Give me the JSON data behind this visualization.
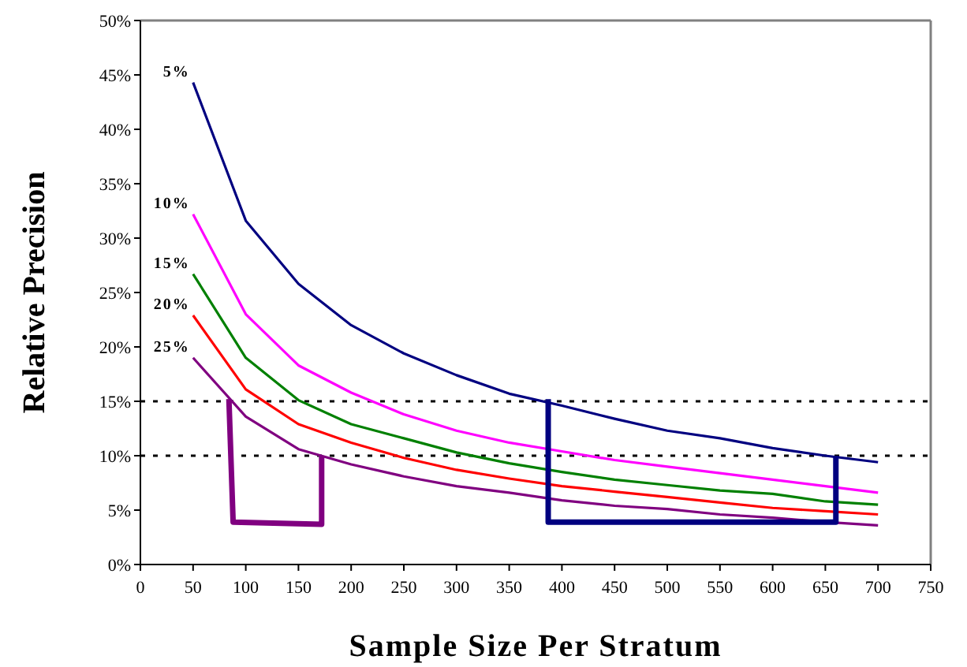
{
  "chart_data": {
    "type": "line",
    "xlabel": "Sample Size Per Stratum",
    "ylabel": "Relative Precision",
    "x": [
      50,
      100,
      150,
      200,
      250,
      300,
      350,
      400,
      450,
      500,
      550,
      600,
      650,
      700
    ],
    "series": [
      {
        "name": "5%",
        "color": "#000080",
        "values": [
          44.3,
          31.6,
          25.8,
          22.0,
          19.4,
          17.4,
          15.7,
          14.6,
          13.4,
          12.3,
          11.6,
          10.7,
          10.0,
          9.4
        ]
      },
      {
        "name": "10%",
        "color": "#ff00ff",
        "values": [
          32.2,
          23.0,
          18.3,
          15.8,
          13.8,
          12.3,
          11.2,
          10.4,
          9.6,
          9.0,
          8.4,
          7.8,
          7.2,
          6.6
        ]
      },
      {
        "name": "15%",
        "color": "#008000",
        "values": [
          26.7,
          19.0,
          15.1,
          12.9,
          11.6,
          10.3,
          9.3,
          8.5,
          7.8,
          7.3,
          6.8,
          6.5,
          5.8,
          5.5
        ]
      },
      {
        "name": "20%",
        "color": "#ff0000",
        "values": [
          22.9,
          16.1,
          12.9,
          11.2,
          9.8,
          8.7,
          7.9,
          7.2,
          6.7,
          6.2,
          5.7,
          5.2,
          4.9,
          4.6
        ]
      },
      {
        "name": "25%",
        "color": "#800080",
        "values": [
          19.0,
          13.6,
          10.6,
          9.2,
          8.1,
          7.2,
          6.6,
          5.9,
          5.4,
          5.1,
          4.6,
          4.3,
          3.9,
          3.6
        ]
      }
    ],
    "xlim": [
      0,
      750
    ],
    "xticks": [
      0,
      50,
      100,
      150,
      200,
      250,
      300,
      350,
      400,
      450,
      500,
      550,
      600,
      650,
      700,
      750
    ],
    "ylim": [
      0,
      50
    ],
    "yticks": [
      {
        "value": 0,
        "label": "0%"
      },
      {
        "value": 5,
        "label": "5%"
      },
      {
        "value": 10,
        "label": "10%"
      },
      {
        "value": 15,
        "label": "15%"
      },
      {
        "value": 20,
        "label": "20%"
      },
      {
        "value": 25,
        "label": "25%"
      },
      {
        "value": 30,
        "label": "30%"
      },
      {
        "value": 35,
        "label": "35%"
      },
      {
        "value": 40,
        "label": "40%"
      },
      {
        "value": 45,
        "label": "45%"
      },
      {
        "value": 50,
        "label": "50%"
      }
    ],
    "ref_lines": [
      {
        "axis": "y",
        "value": 15,
        "line_style": "dotted",
        "color": "#000000"
      },
      {
        "axis": "y",
        "value": 10,
        "line_style": "dotted",
        "color": "#000000"
      }
    ],
    "grid": false,
    "legend": false,
    "marker": "none",
    "line_style": "solid"
  }
}
